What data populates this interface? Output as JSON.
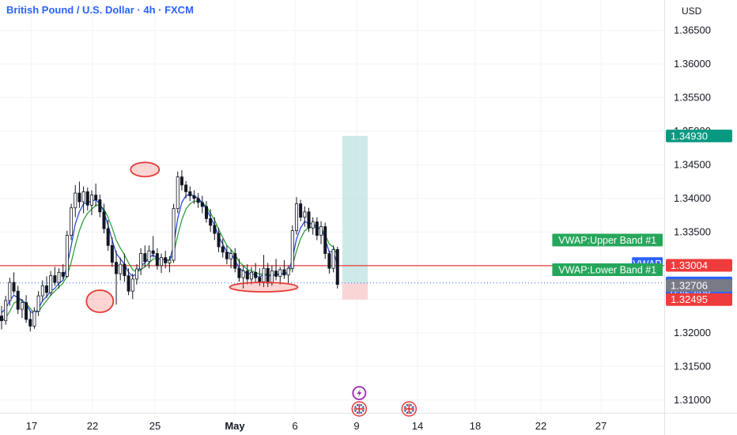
{
  "header": {
    "title": "British Pound / U.S. Dollar · 4h · FXCM",
    "currency": "USD"
  },
  "colors": {
    "up": "#131722",
    "down": "#131722",
    "ma_blue": "#1e3fd8",
    "ma_green": "#1f9d2f",
    "hline": "#e53935",
    "ellipse": "#e53935",
    "profit_zone": "#b2dfdb",
    "loss_zone": "#f8c7c7",
    "badge_green": "#26a65b",
    "badge_red": "#ef3b3b",
    "badge_blue": "#2962ff",
    "badge_teal": "#089981",
    "badge_gray": "#787b86",
    "event_purple": "#9c27b0"
  },
  "chart_data": {
    "type": "candlestick",
    "symbol": "GBPUSD",
    "timeframe": "4h",
    "y_ticks": [
      "1.36500",
      "1.36000",
      "1.35500",
      "1.35000",
      "1.34500",
      "1.34000",
      "1.33500",
      "1.33000",
      "1.32500",
      "1.32000",
      "1.31500",
      "1.31000"
    ],
    "x_ticks": [
      "17",
      "22",
      "25",
      "May",
      "6",
      "9",
      "14",
      "18",
      "22",
      "27"
    ],
    "ylim": [
      1.307,
      1.37
    ],
    "candles": [
      [
        1.3225,
        1.324,
        1.3205,
        1.3218
      ],
      [
        1.3218,
        1.3255,
        1.3212,
        1.3248
      ],
      [
        1.3248,
        1.3282,
        1.324,
        1.3275
      ],
      [
        1.3275,
        1.329,
        1.3258,
        1.3262
      ],
      [
        1.3262,
        1.327,
        1.3228,
        1.3235
      ],
      [
        1.3235,
        1.325,
        1.3222,
        1.3245
      ],
      [
        1.3245,
        1.3256,
        1.3215,
        1.322
      ],
      [
        1.322,
        1.3232,
        1.3202,
        1.321
      ],
      [
        1.321,
        1.3238,
        1.3206,
        1.3232
      ],
      [
        1.3232,
        1.3262,
        1.3225,
        1.3255
      ],
      [
        1.3255,
        1.3278,
        1.3246,
        1.327
      ],
      [
        1.327,
        1.3284,
        1.3252,
        1.326
      ],
      [
        1.326,
        1.3292,
        1.3255,
        1.3285
      ],
      [
        1.3285,
        1.3298,
        1.327,
        1.3275
      ],
      [
        1.3275,
        1.3296,
        1.3266,
        1.329
      ],
      [
        1.329,
        1.3302,
        1.328,
        1.3284
      ],
      [
        1.3284,
        1.3352,
        1.3282,
        1.3345
      ],
      [
        1.3345,
        1.3392,
        1.3338,
        1.3386
      ],
      [
        1.3386,
        1.342,
        1.3372,
        1.3408
      ],
      [
        1.3408,
        1.3425,
        1.3386,
        1.3395
      ],
      [
        1.3395,
        1.3418,
        1.3378,
        1.341
      ],
      [
        1.341,
        1.3416,
        1.3382,
        1.339
      ],
      [
        1.339,
        1.3412,
        1.3375,
        1.3405
      ],
      [
        1.3405,
        1.3422,
        1.3388,
        1.3398
      ],
      [
        1.3398,
        1.3406,
        1.3372,
        1.338
      ],
      [
        1.338,
        1.3392,
        1.3348,
        1.3355
      ],
      [
        1.3355,
        1.3368,
        1.3322,
        1.333
      ],
      [
        1.333,
        1.3342,
        1.3298,
        1.3305
      ],
      [
        1.3305,
        1.3322,
        1.3242,
        1.3288
      ],
      [
        1.3288,
        1.3312,
        1.3278,
        1.3302
      ],
      [
        1.3302,
        1.3318,
        1.3276,
        1.3285
      ],
      [
        1.3285,
        1.3296,
        1.3256,
        1.3262
      ],
      [
        1.3262,
        1.3288,
        1.325,
        1.328
      ],
      [
        1.328,
        1.3302,
        1.3272,
        1.3295
      ],
      [
        1.3295,
        1.3326,
        1.3286,
        1.3318
      ],
      [
        1.3318,
        1.333,
        1.3298,
        1.3306
      ],
      [
        1.3306,
        1.333,
        1.3296,
        1.3322
      ],
      [
        1.3322,
        1.3344,
        1.3312,
        1.3318
      ],
      [
        1.3318,
        1.3326,
        1.3294,
        1.33
      ],
      [
        1.33,
        1.3318,
        1.3289,
        1.3312
      ],
      [
        1.3312,
        1.3322,
        1.3296,
        1.3304
      ],
      [
        1.3304,
        1.3314,
        1.329,
        1.3308
      ],
      [
        1.3308,
        1.3392,
        1.3304,
        1.3385
      ],
      [
        1.3385,
        1.344,
        1.3378,
        1.3432
      ],
      [
        1.3432,
        1.3442,
        1.3412,
        1.342
      ],
      [
        1.342,
        1.3426,
        1.34,
        1.341
      ],
      [
        1.341,
        1.3418,
        1.3396,
        1.3404
      ],
      [
        1.3404,
        1.3412,
        1.3392,
        1.34
      ],
      [
        1.34,
        1.3408,
        1.3386,
        1.3394
      ],
      [
        1.3394,
        1.3404,
        1.3378,
        1.3388
      ],
      [
        1.3388,
        1.3396,
        1.3364,
        1.337
      ],
      [
        1.337,
        1.3384,
        1.335,
        1.336
      ],
      [
        1.336,
        1.3372,
        1.3338,
        1.3348
      ],
      [
        1.3348,
        1.3356,
        1.332,
        1.3328
      ],
      [
        1.3328,
        1.334,
        1.3312,
        1.332
      ],
      [
        1.332,
        1.333,
        1.3302,
        1.331
      ],
      [
        1.331,
        1.3324,
        1.3296,
        1.3318
      ],
      [
        1.3318,
        1.3326,
        1.329,
        1.3296
      ],
      [
        1.3296,
        1.331,
        1.3276,
        1.3282
      ],
      [
        1.3282,
        1.33,
        1.3266,
        1.3292
      ],
      [
        1.3292,
        1.3302,
        1.3272,
        1.328
      ],
      [
        1.328,
        1.3298,
        1.3272,
        1.329
      ],
      [
        1.329,
        1.3304,
        1.3274,
        1.3282
      ],
      [
        1.3282,
        1.3296,
        1.327,
        1.3276
      ],
      [
        1.3276,
        1.3316,
        1.3268,
        1.3296
      ],
      [
        1.3296,
        1.3304,
        1.3268,
        1.3274
      ],
      [
        1.3274,
        1.33,
        1.327,
        1.3292
      ],
      [
        1.3292,
        1.331,
        1.3278,
        1.3284
      ],
      [
        1.3284,
        1.3298,
        1.3272,
        1.3294
      ],
      [
        1.3294,
        1.3308,
        1.328,
        1.3286
      ],
      [
        1.3286,
        1.33,
        1.3274,
        1.3296
      ],
      [
        1.3296,
        1.336,
        1.329,
        1.3352
      ],
      [
        1.3352,
        1.3402,
        1.3346,
        1.3392
      ],
      [
        1.3392,
        1.3398,
        1.3366,
        1.3372
      ],
      [
        1.3372,
        1.3388,
        1.3358,
        1.338
      ],
      [
        1.338,
        1.3386,
        1.335,
        1.3356
      ],
      [
        1.3356,
        1.3372,
        1.3346,
        1.3365
      ],
      [
        1.3365,
        1.3372,
        1.3338,
        1.3345
      ],
      [
        1.3345,
        1.3366,
        1.3332,
        1.3358
      ],
      [
        1.3358,
        1.3364,
        1.331,
        1.3318
      ],
      [
        1.3318,
        1.3322,
        1.3288,
        1.3296
      ],
      [
        1.3296,
        1.333,
        1.329,
        1.3324
      ],
      [
        1.3324,
        1.3328,
        1.3266,
        1.3272
      ]
    ],
    "ma_blue": [
      1.323,
      1.3236,
      1.3248,
      1.3256,
      1.3252,
      1.3249,
      1.3242,
      1.3232,
      1.3228,
      1.3236,
      1.3248,
      1.3254,
      1.3262,
      1.3266,
      1.3274,
      1.3278,
      1.33,
      1.333,
      1.3362,
      1.338,
      1.3392,
      1.3394,
      1.3396,
      1.3398,
      1.3392,
      1.338,
      1.336,
      1.3338,
      1.3318,
      1.331,
      1.3302,
      1.329,
      1.3284,
      1.3288,
      1.33,
      1.3304,
      1.3312,
      1.3316,
      1.331,
      1.331,
      1.3308,
      1.3308,
      1.333,
      1.337,
      1.3394,
      1.3404,
      1.3406,
      1.3404,
      1.34,
      1.3394,
      1.3384,
      1.3372,
      1.336,
      1.3344,
      1.3332,
      1.332,
      1.3318,
      1.3308,
      1.3296,
      1.3292,
      1.3288,
      1.3288,
      1.3286,
      1.3282,
      1.3288,
      1.3284,
      1.3286,
      1.3286,
      1.3288,
      1.3288,
      1.329,
      1.331,
      1.334,
      1.3356,
      1.3366,
      1.3362,
      1.3363,
      1.3356,
      1.3356,
      1.334,
      1.332,
      1.3322,
      1.33
    ],
    "ma_green": [
      1.3218,
      1.3222,
      1.3232,
      1.3244,
      1.3248,
      1.3248,
      1.3244,
      1.3236,
      1.323,
      1.3232,
      1.324,
      1.3248,
      1.3256,
      1.3262,
      1.3268,
      1.3274,
      1.3285,
      1.3305,
      1.333,
      1.3352,
      1.3368,
      1.3378,
      1.3384,
      1.339,
      1.339,
      1.3384,
      1.3372,
      1.3356,
      1.3338,
      1.3326,
      1.3316,
      1.3304,
      1.3294,
      1.329,
      1.3294,
      1.3298,
      1.3304,
      1.331,
      1.331,
      1.331,
      1.3309,
      1.3308,
      1.3318,
      1.3345,
      1.3368,
      1.3384,
      1.3392,
      1.3396,
      1.3396,
      1.3394,
      1.3388,
      1.3378,
      1.3368,
      1.3354,
      1.3342,
      1.333,
      1.3324,
      1.3316,
      1.3306,
      1.33,
      1.3294,
      1.3292,
      1.329,
      1.3287,
      1.3288,
      1.3286,
      1.3286,
      1.3286,
      1.3287,
      1.3288,
      1.3289,
      1.33,
      1.3322,
      1.334,
      1.3352,
      1.3356,
      1.3358,
      1.3356,
      1.3356,
      1.3346,
      1.3332,
      1.3328,
      1.3314
    ],
    "hline_price": 1.33,
    "dotted_price": 1.32742,
    "ellipses": [
      {
        "x_index": 24,
        "price": 1.3247
      },
      {
        "x_index": 35,
        "price": 1.3443
      },
      {
        "x_index": 64,
        "price": 1.3268
      }
    ],
    "position": {
      "x_start_index": 83,
      "x_end_index": 89,
      "entry": 1.32742,
      "target": 1.3493,
      "stop": 1.32495
    },
    "price_badges": [
      {
        "label": "1.34930",
        "price": 1.3493,
        "color": "#089981"
      },
      {
        "label": "1.33004",
        "price": 1.33004,
        "color": "#ef3b3b"
      },
      {
        "label": "1.32742",
        "sublabel": "02:53:08",
        "price": 1.32742,
        "color": "#2962ff"
      },
      {
        "label": "1.32706",
        "price": 1.32706,
        "color": "#787b86"
      },
      {
        "label": "1.32495",
        "price": 1.32495,
        "color": "#ef3b3b"
      }
    ],
    "line_labels": [
      {
        "label": "VWAP:Upper Band #1",
        "price": 1.3338,
        "color": "#26a65b"
      },
      {
        "label": "VWAP",
        "price": 1.3303,
        "color": "#2962ff"
      },
      {
        "label": "VWAP:Lower Band #1",
        "price": 1.3294,
        "color": "#26a65b"
      }
    ],
    "events": [
      {
        "icon": "lightning-icon",
        "x_index": 85,
        "row": 1
      },
      {
        "icon": "uk-flag-icon",
        "x_index": 85,
        "row": 2
      },
      {
        "icon": "uk-flag-icon",
        "x_index": 96,
        "row": 2
      }
    ]
  }
}
